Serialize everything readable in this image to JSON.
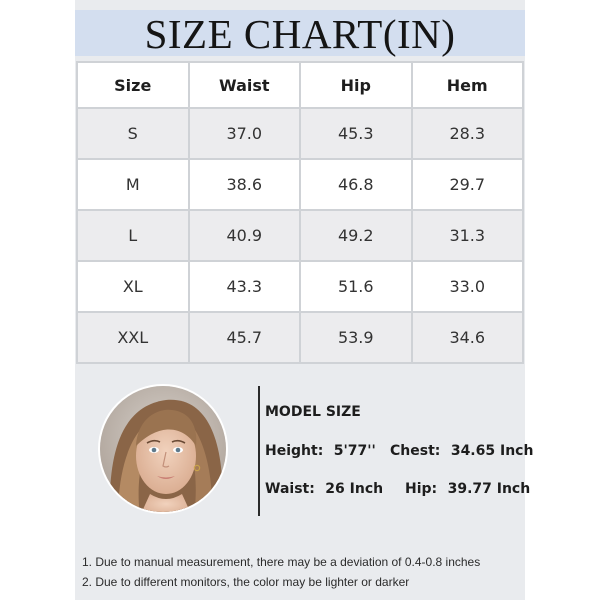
{
  "title": "SIZE CHART(IN)",
  "table": {
    "headers": [
      "Size",
      "Waist",
      "Hip",
      "Hem"
    ],
    "rows": [
      [
        "S",
        "37.0",
        "45.3",
        "28.3"
      ],
      [
        "M",
        "38.6",
        "46.8",
        "29.7"
      ],
      [
        "L",
        "40.9",
        "49.2",
        "31.3"
      ],
      [
        "XL",
        "43.3",
        "51.6",
        "33.0"
      ],
      [
        "XXL",
        "45.7",
        "53.9",
        "34.6"
      ]
    ]
  },
  "model": {
    "heading": "MODEL SIZE",
    "height_label": "Height:",
    "height_value": "5'77''",
    "chest_label": "Chest:",
    "chest_value": "34.65 Inch",
    "waist_label": "Waist:",
    "waist_value": "26 Inch",
    "hip_label": "Hip:",
    "hip_value": "39.77 Inch"
  },
  "notes": [
    "1. Due to manual measurement, there may be a deviation of 0.4-0.8 inches",
    "2. Due to different monitors, the color may be lighter or darker"
  ],
  "colors": {
    "panel": "#e9ebee",
    "title_band": "#d3deef",
    "grid": "#cfd2d6"
  }
}
